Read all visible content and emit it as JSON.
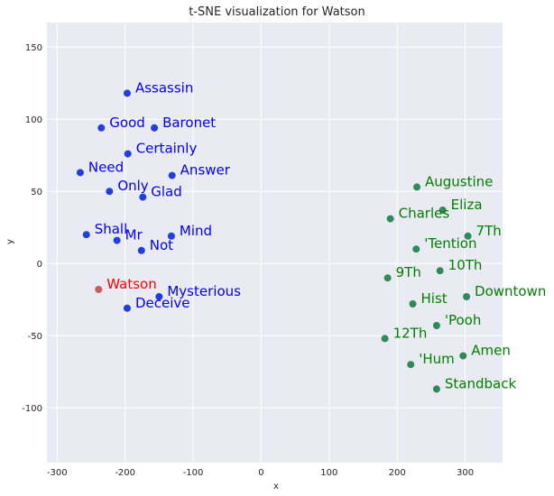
{
  "chart_data": {
    "type": "scatter",
    "title": "t-SNE visualization for Watson",
    "xlabel": "x",
    "ylabel": "y",
    "xlim": [
      -315,
      355
    ],
    "ylim": [
      -138,
      167
    ],
    "xticks": [
      -300,
      -200,
      -100,
      0,
      100,
      200,
      300
    ],
    "yticks": [
      -100,
      -50,
      0,
      50,
      100,
      150
    ],
    "grid": true,
    "colors": {
      "background": "#eaeaf2",
      "grid": "#ffffff",
      "blue": "#1f3fe0",
      "blue_label": "#0000ff",
      "green": "#2e8b57",
      "green_label": "#008000",
      "red": "#cd5c5c",
      "red_label": "#ff0000"
    },
    "points": [
      {
        "label": "Assassin",
        "x": -197,
        "y": 118,
        "group": "blue"
      },
      {
        "label": "Good",
        "x": -235,
        "y": 94,
        "group": "blue"
      },
      {
        "label": "Baronet",
        "x": -157,
        "y": 94,
        "group": "blue"
      },
      {
        "label": "Certainly",
        "x": -196,
        "y": 76,
        "group": "blue"
      },
      {
        "label": "Need",
        "x": -266,
        "y": 63,
        "group": "blue"
      },
      {
        "label": "Answer",
        "x": -131,
        "y": 61,
        "group": "blue"
      },
      {
        "label": "Only",
        "x": -223,
        "y": 50,
        "group": "blue"
      },
      {
        "label": "Glad",
        "x": -174,
        "y": 46,
        "group": "blue"
      },
      {
        "label": "Shall",
        "x": -257,
        "y": 20,
        "group": "blue"
      },
      {
        "label": "Mind",
        "x": -132,
        "y": 19,
        "group": "blue"
      },
      {
        "label": "Mr",
        "x": -212,
        "y": 16,
        "group": "blue"
      },
      {
        "label": "Not",
        "x": -176,
        "y": 9,
        "group": "blue"
      },
      {
        "label": "Watson",
        "x": -239,
        "y": -18,
        "group": "red"
      },
      {
        "label": "Mysterious",
        "x": -150,
        "y": -23,
        "group": "blue"
      },
      {
        "label": "Deceive",
        "x": -197,
        "y": -31,
        "group": "blue"
      },
      {
        "label": "Augustine",
        "x": 229,
        "y": 53,
        "group": "green"
      },
      {
        "label": "Eliza",
        "x": 267,
        "y": 37,
        "group": "green"
      },
      {
        "label": "Charles",
        "x": 190,
        "y": 31,
        "group": "green"
      },
      {
        "label": "7Th",
        "x": 304,
        "y": 19,
        "group": "green"
      },
      {
        "label": "'Tention",
        "x": 228,
        "y": 10,
        "group": "green"
      },
      {
        "label": "10Th",
        "x": 263,
        "y": -5,
        "group": "green"
      },
      {
        "label": "9Th",
        "x": 186,
        "y": -10,
        "group": "green"
      },
      {
        "label": "Downtown",
        "x": 302,
        "y": -23,
        "group": "green"
      },
      {
        "label": "Hist",
        "x": 223,
        "y": -28,
        "group": "green"
      },
      {
        "label": "'Pooh",
        "x": 258,
        "y": -43,
        "group": "green"
      },
      {
        "label": "12Th",
        "x": 182,
        "y": -52,
        "group": "green"
      },
      {
        "label": "Amen",
        "x": 297,
        "y": -64,
        "group": "green"
      },
      {
        "label": "'Hum",
        "x": 220,
        "y": -70,
        "group": "green"
      },
      {
        "label": "Standback",
        "x": 258,
        "y": -87,
        "group": "green"
      }
    ]
  }
}
